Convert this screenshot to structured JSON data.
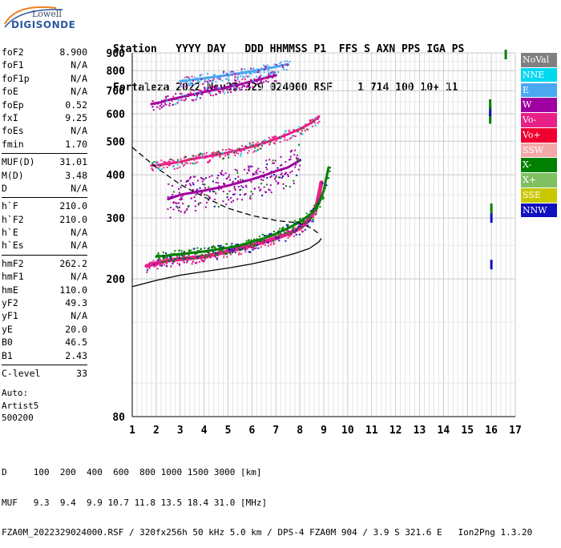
{
  "logo": {
    "line1": "Lowell",
    "line2": "DIGISONDE"
  },
  "header": {
    "row1": "Station   YYYY DAY   DDD HHMMSS P1  FFS S AXN PPS IGA PS",
    "row2": "Fortaleza 2022 Nov25 329 024000 RSF    1 714 100 10+ 11"
  },
  "params": {
    "group1": [
      {
        "name": "foF2",
        "value": "8.900"
      },
      {
        "name": "foF1",
        "value": "N/A"
      },
      {
        "name": "foF1p",
        "value": "N/A"
      },
      {
        "name": "foE",
        "value": "N/A"
      },
      {
        "name": "foEp",
        "value": "0.52"
      },
      {
        "name": "fxI",
        "value": "9.25"
      },
      {
        "name": "foEs",
        "value": "N/A"
      },
      {
        "name": "fmin",
        "value": "1.70"
      }
    ],
    "group2": [
      {
        "name": "MUF(D)",
        "value": "31.01"
      },
      {
        "name": "M(D)",
        "value": "3.48"
      },
      {
        "name": "D",
        "value": "N/A"
      }
    ],
    "group3": [
      {
        "name": "h`F",
        "value": "210.0"
      },
      {
        "name": "h`F2",
        "value": "210.0"
      },
      {
        "name": "h`E",
        "value": "N/A"
      },
      {
        "name": "h`Es",
        "value": "N/A"
      }
    ],
    "group4": [
      {
        "name": "hmF2",
        "value": "262.2"
      },
      {
        "name": "hmF1",
        "value": "N/A"
      },
      {
        "name": "hmE",
        "value": "110.0"
      },
      {
        "name": "yF2",
        "value": "49.3"
      },
      {
        "name": "yF1",
        "value": "N/A"
      },
      {
        "name": "yE",
        "value": "20.0"
      },
      {
        "name": "B0",
        "value": "46.5"
      },
      {
        "name": "B1",
        "value": "2.43"
      }
    ],
    "group5": [
      {
        "name": "C-level",
        "value": "33"
      }
    ]
  },
  "auto": {
    "line1": "Auto:",
    "line2": "Artist5",
    "line3": "500200"
  },
  "legend": [
    {
      "label": "NoVal",
      "color": "#808080"
    },
    {
      "label": "NNE",
      "color": "#00d8f0"
    },
    {
      "label": "E",
      "color": "#4aa8f0"
    },
    {
      "label": "W",
      "color": "#a000a0"
    },
    {
      "label": "Vo-",
      "color": "#e8208a"
    },
    {
      "label": "Vo+",
      "color": "#f00030"
    },
    {
      "label": "SSW",
      "color": "#f4a8a8"
    },
    {
      "label": "X-",
      "color": "#008000"
    },
    {
      "label": "X+",
      "color": "#80c060"
    },
    {
      "label": "SSE",
      "color": "#c8c800"
    },
    {
      "label": "NNW",
      "color": "#1010c0"
    }
  ],
  "footer": {
    "line1": "D     100  200  400  600  800 1000 1500 3000 [km]",
    "line2": "MUF   9.3  9.4  9.9 10.7 11.8 13.5 18.4 31.0 [MHz]",
    "line3": "FZA0M_2022329024000.RSF / 320fx256h 50 kHz 5.0 km / DPS-4 FZA0M 904 / 3.9 S 321.6 E   Ion2Png 1.3.20"
  },
  "chart_data": {
    "type": "scatter",
    "x_ticks": [
      "1",
      "2",
      "3",
      "4",
      "5",
      "6",
      "7",
      "8",
      "9",
      "10",
      "11",
      "12",
      "13",
      "14",
      "15",
      "16",
      "17"
    ],
    "y_ticks": [
      "80",
      "200",
      "300",
      "400",
      "500",
      "600",
      "700",
      "800",
      "900"
    ],
    "xlim": [
      1,
      17
    ],
    "y_scale": "log",
    "grid": true,
    "traces": [
      {
        "name": "O-trace (F)",
        "color": "#e8208a",
        "x": [
          1.6,
          2.0,
          2.5,
          3.0,
          3.5,
          4.0,
          4.5,
          5.0,
          5.5,
          6.0,
          6.5,
          7.0,
          7.5,
          8.0,
          8.3,
          8.5,
          8.7,
          8.8,
          8.9
        ],
        "y": [
          218,
          222,
          226,
          228,
          230,
          232,
          236,
          240,
          245,
          250,
          256,
          262,
          270,
          280,
          292,
          305,
          325,
          350,
          380
        ]
      },
      {
        "name": "X-trace (F)",
        "color": "#008000",
        "x": [
          2.0,
          2.5,
          3.0,
          3.5,
          4.0,
          4.5,
          5.0,
          5.5,
          6.0,
          6.5,
          7.0,
          7.5,
          8.0,
          8.5,
          8.8,
          9.0,
          9.1,
          9.2
        ],
        "y": [
          232,
          234,
          236,
          238,
          240,
          243,
          246,
          250,
          256,
          262,
          270,
          280,
          292,
          310,
          330,
          360,
          390,
          420
        ]
      },
      {
        "name": "2nd hop",
        "color": "#e8208a",
        "x": [
          1.8,
          2.5,
          3.0,
          3.5,
          4.0,
          4.5,
          5.0,
          5.5,
          6.0,
          6.5,
          7.0,
          7.5,
          8.0,
          8.5,
          8.8
        ],
        "y": [
          425,
          430,
          436,
          444,
          450,
          456,
          464,
          472,
          482,
          494,
          508,
          524,
          542,
          566,
          590
        ]
      },
      {
        "name": "3rd hop",
        "color": "#a000a0",
        "x": [
          1.8,
          2.2,
          2.6,
          3.0,
          3.5,
          4.0,
          4.5,
          5.0,
          5.5,
          6.0,
          6.5,
          7.0
        ],
        "y": [
          640,
          648,
          660,
          670,
          682,
          694,
          705,
          718,
          730,
          745,
          760,
          775
        ]
      },
      {
        "name": "4th hop",
        "color": "#4aa8f0",
        "x": [
          3.0,
          3.5,
          4.0,
          4.5,
          5.0,
          5.5,
          6.0,
          6.5,
          7.0,
          7.5
        ],
        "y": [
          745,
          752,
          760,
          768,
          776,
          786,
          796,
          808,
          820,
          835
        ]
      },
      {
        "name": "Diffuse",
        "color": "#a000a0",
        "x": [
          2.5,
          3.0,
          3.5,
          4.0,
          4.5,
          5.0,
          5.5,
          6.0,
          6.5,
          7.0,
          7.5,
          8.0
        ],
        "y": [
          340,
          350,
          355,
          360,
          366,
          372,
          380,
          388,
          398,
          410,
          420,
          440
        ]
      },
      {
        "name": "Vertical column 16",
        "color": "#008000",
        "x": [
          15.95,
          15.95,
          15.95,
          16.0,
          16.0,
          16.0,
          16.6
        ],
        "y": [
          580,
          610,
          640,
          300,
          320,
          220,
          890
        ]
      }
    ],
    "profile_curves": [
      {
        "name": "true-height profile",
        "style": "solid",
        "x": [
          1.0,
          2.0,
          3.0,
          4.0,
          5.0,
          6.0,
          7.0,
          7.8,
          8.4,
          8.8,
          8.9
        ],
        "y": [
          190,
          198,
          205,
          210,
          215,
          221,
          229,
          237,
          245,
          256,
          262
        ]
      },
      {
        "name": "model curve",
        "style": "dashed",
        "x": [
          1.0,
          2.0,
          3.0,
          4.0,
          5.0,
          6.0,
          7.0,
          8.0,
          8.5,
          8.8
        ],
        "y": [
          480,
          420,
          375,
          345,
          320,
          305,
          295,
          290,
          280,
          270
        ]
      }
    ]
  }
}
